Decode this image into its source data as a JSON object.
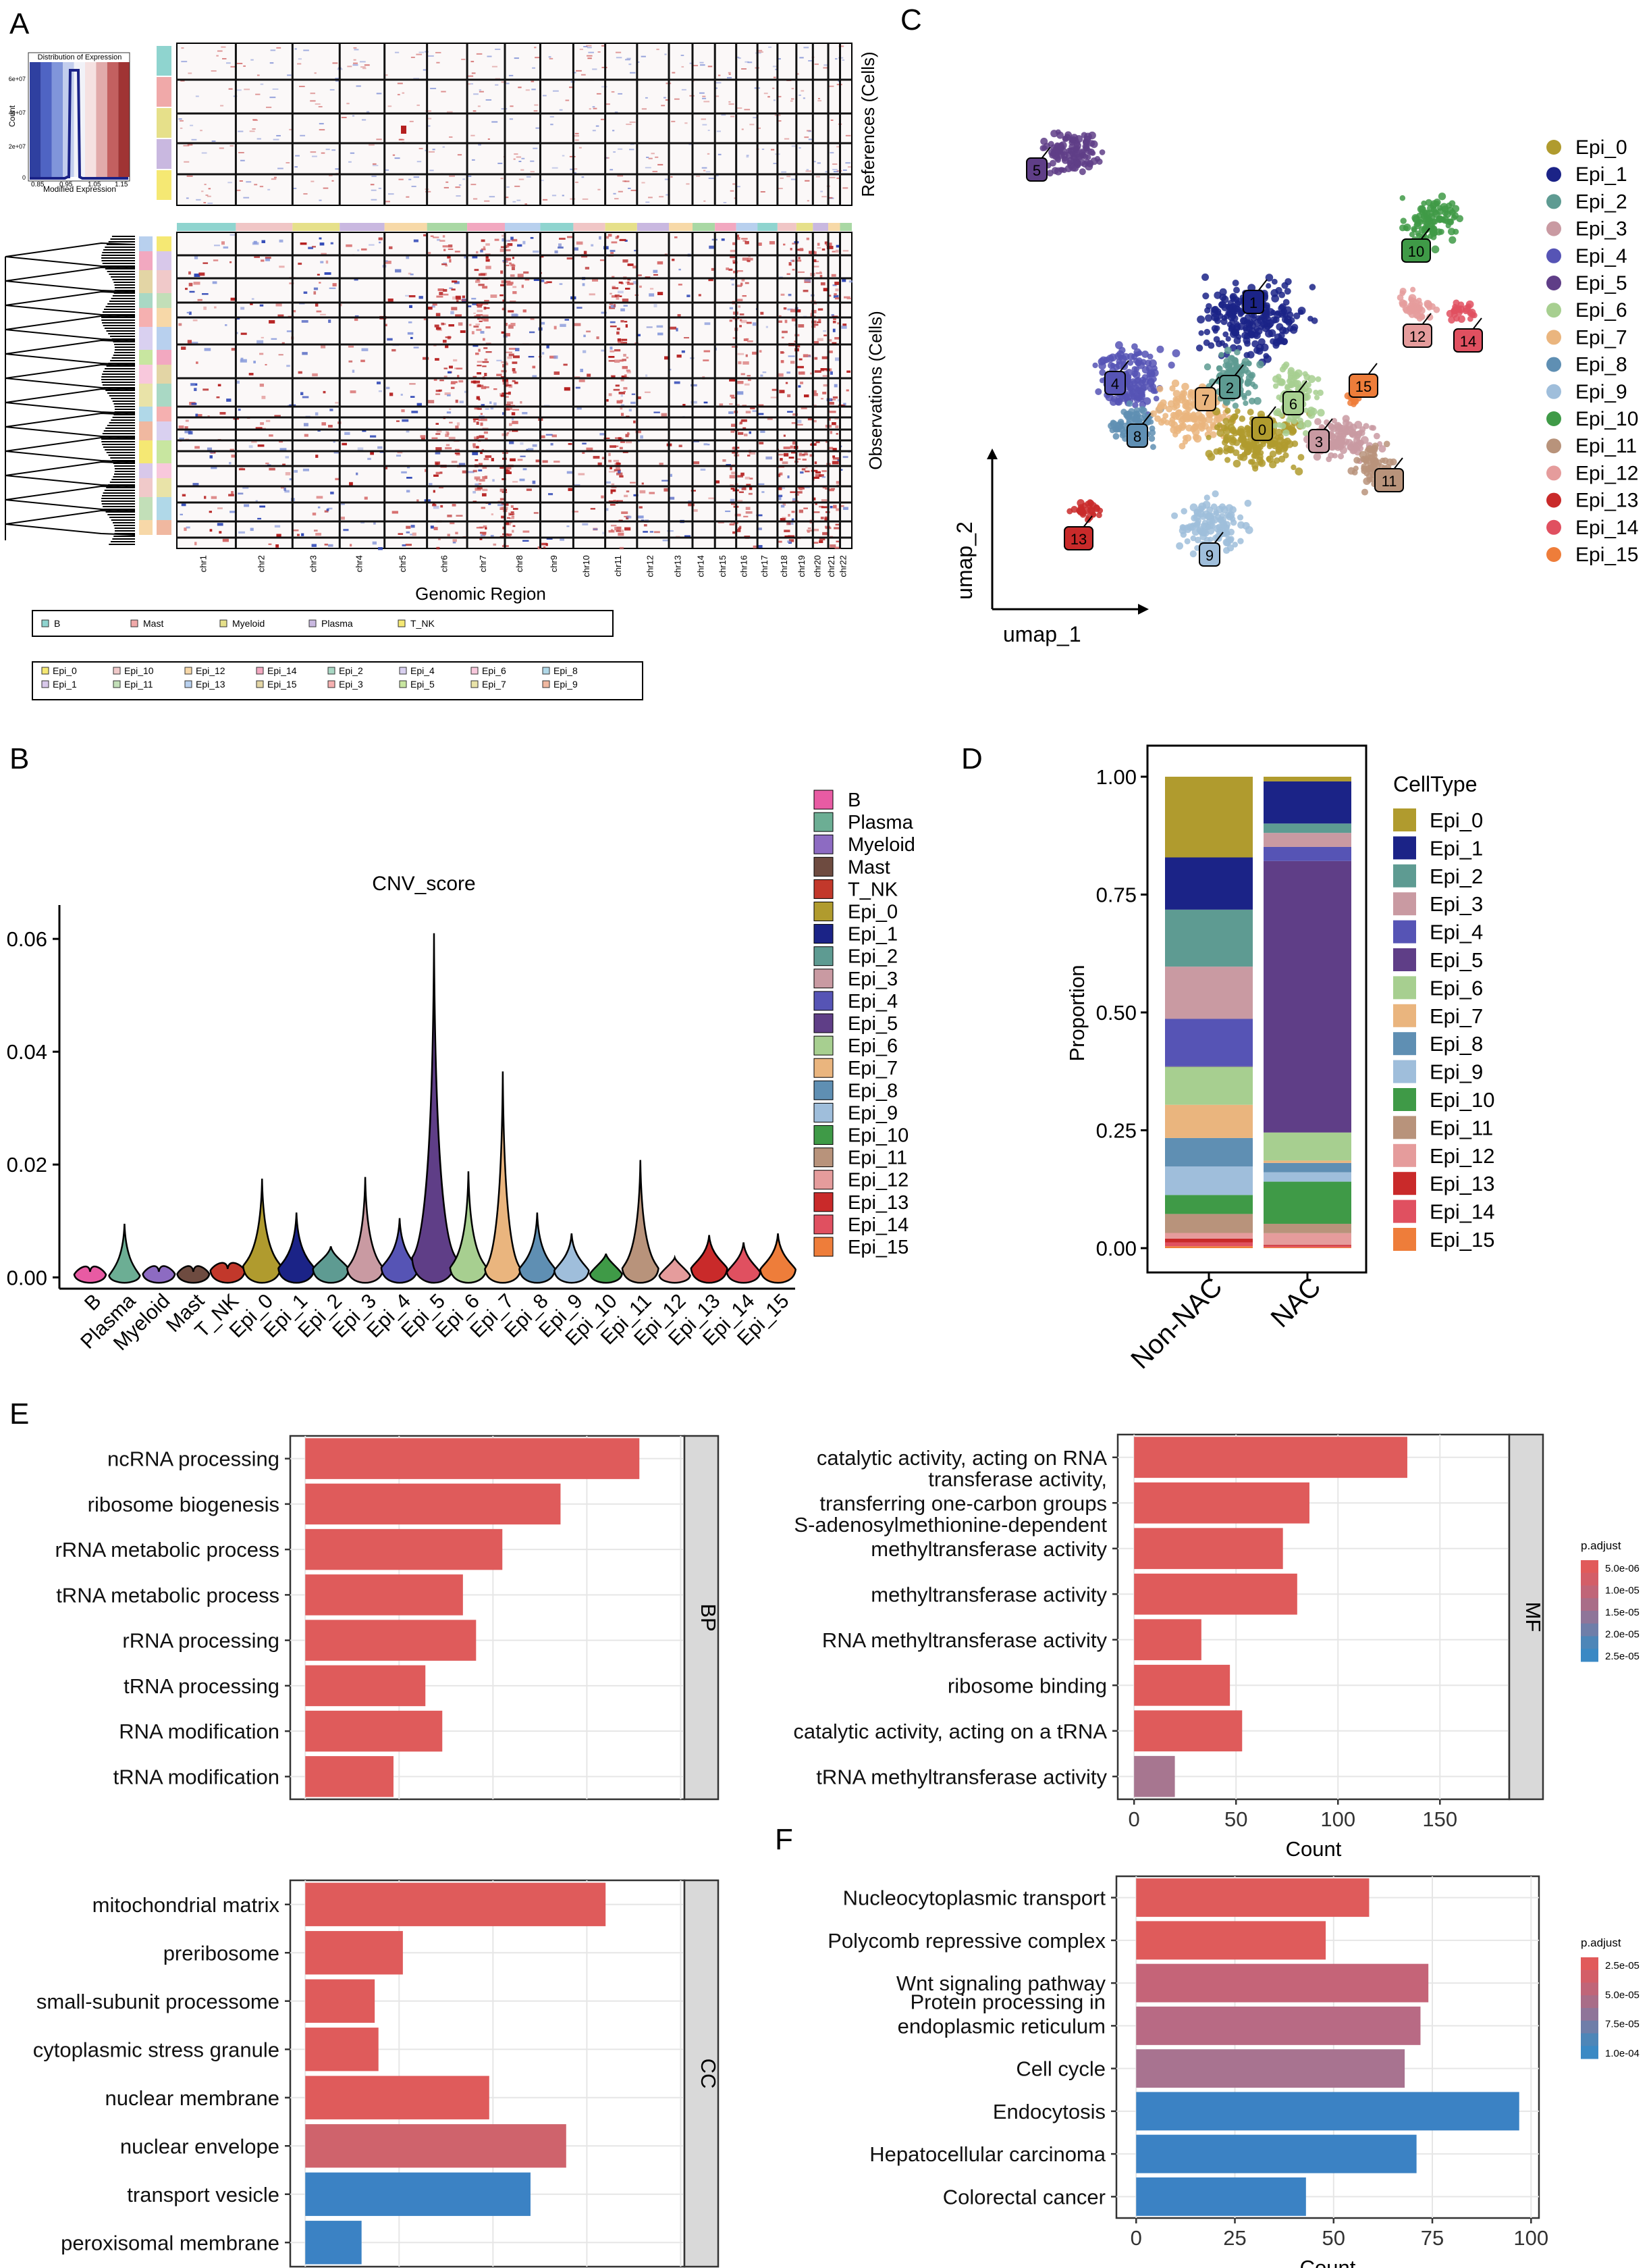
{
  "colors": {
    "B": "#e85ba3",
    "Plasma": "#6cae94",
    "Myeloid": "#8d6bc2",
    "Mast": "#6e4b40",
    "T_NK": "#c2382b",
    "Epi_0": "#b09b2e",
    "Epi_1": "#1b2387",
    "Epi_2": "#5e9b92",
    "Epi_3": "#c99aa2",
    "Epi_4": "#5654b5",
    "Epi_5": "#5f3e87",
    "Epi_6": "#a7cf90",
    "Epi_7": "#eab57e",
    "Epi_8": "#5f8fb3",
    "Epi_9": "#9fbedb",
    "Epi_10": "#3f9a47",
    "Epi_11": "#b8937b",
    "Epi_12": "#e59c9c",
    "Epi_13": "#c92a2a",
    "Epi_14": "#e05060",
    "Epi_15": "#ee7d3a"
  },
  "panels": {
    "A": {
      "label": "A",
      "hist_title": "Distribution of Expression",
      "hist_xlabel": "Modified Expression",
      "hist_ylabel": "Count",
      "hist_xticks": [
        "0.85",
        "0.95",
        "1.05",
        "1.15"
      ],
      "hist_yticks": [
        "0",
        "2e+07",
        "4e+07",
        "6e+07"
      ],
      "ref_label": "References (Cells)",
      "obs_label": "Observations (Cells)",
      "xlabel": "Genomic Region",
      "chromosomes": [
        "chr1",
        "chr2",
        "chr3",
        "chr4",
        "chr5",
        "chr6",
        "chr7",
        "chr8",
        "chr9",
        "chr10",
        "chr11",
        "chr12",
        "chr13",
        "chr14",
        "chr15",
        "chr16",
        "chr17",
        "chr18",
        "chr19",
        "chr20",
        "chr21",
        "chr22"
      ],
      "legend_refs": [
        "B",
        "Mast",
        "Myeloid",
        "Plasma",
        "T_NK"
      ],
      "legend_obs_row1": [
        "Epi_0",
        "Epi_10",
        "Epi_12",
        "Epi_14",
        "Epi_2",
        "Epi_4",
        "Epi_6",
        "Epi_8"
      ],
      "legend_obs_row2": [
        "Epi_1",
        "Epi_11",
        "Epi_13",
        "Epi_15",
        "Epi_3",
        "Epi_5",
        "Epi_7",
        "Epi_9"
      ]
    },
    "B": {
      "label": "B"
    },
    "C": {
      "label": "C",
      "xlabel": "umap_1",
      "ylabel": "umap_2"
    },
    "D": {
      "label": "D"
    },
    "E": {
      "label": "E"
    },
    "F": {
      "label": "F"
    }
  },
  "chart_data": [
    {
      "id": "B",
      "type": "violin",
      "title": "CNV_score",
      "categories": [
        "B",
        "Plasma",
        "Myeloid",
        "Mast",
        "T_NK",
        "Epi_0",
        "Epi_1",
        "Epi_2",
        "Epi_3",
        "Epi_4",
        "Epi_5",
        "Epi_6",
        "Epi_7",
        "Epi_8",
        "Epi_9",
        "Epi_10",
        "Epi_11",
        "Epi_12",
        "Epi_13",
        "Epi_14",
        "Epi_15"
      ],
      "max_values": [
        0.001,
        0.0095,
        0.001,
        0.001,
        0.0015,
        0.0175,
        0.0115,
        0.0055,
        0.0178,
        0.0105,
        0.061,
        0.0188,
        0.0365,
        0.0115,
        0.0078,
        0.0042,
        0.0208,
        0.0035,
        0.0075,
        0.0062,
        0.0078
      ],
      "medians": [
        0.0005,
        0.0003,
        0.0006,
        0.0006,
        0.0012,
        0.002,
        0.0016,
        0.0015,
        0.0016,
        0.0017,
        0.0035,
        0.0017,
        0.0015,
        0.0015,
        0.0012,
        0.0006,
        0.0016,
        0.0003,
        0.0016,
        0.0009,
        0.0014
      ],
      "ylim": [
        -0.002,
        0.066
      ],
      "yticks": [
        0.0,
        0.02,
        0.04,
        0.06
      ],
      "ytick_labels": [
        "0.00",
        "0.02",
        "0.04",
        "0.06"
      ],
      "legend": [
        "B",
        "Plasma",
        "Myeloid",
        "Mast",
        "T_NK",
        "Epi_0",
        "Epi_1",
        "Epi_2",
        "Epi_3",
        "Epi_4",
        "Epi_5",
        "Epi_6",
        "Epi_7",
        "Epi_8",
        "Epi_9",
        "Epi_10",
        "Epi_11",
        "Epi_12",
        "Epi_13",
        "Epi_14",
        "Epi_15"
      ]
    },
    {
      "id": "C",
      "type": "scatter",
      "title": "",
      "xlabel": "umap_1",
      "ylabel": "umap_2",
      "legend": [
        "Epi_0",
        "Epi_1",
        "Epi_2",
        "Epi_3",
        "Epi_4",
        "Epi_5",
        "Epi_6",
        "Epi_7",
        "Epi_8",
        "Epi_9",
        "Epi_10",
        "Epi_11",
        "Epi_12",
        "Epi_13",
        "Epi_14",
        "Epi_15"
      ],
      "cluster_labels": [
        "0",
        "1",
        "2",
        "3",
        "4",
        "5",
        "6",
        "7",
        "8",
        "9",
        "10",
        "11",
        "12",
        "13",
        "14",
        "15"
      ]
    },
    {
      "id": "D",
      "type": "bar",
      "stacked": true,
      "categories": [
        "Non-NAC",
        "NAC"
      ],
      "ylabel": "Proportion",
      "legend_title": "CellType",
      "ylim": [
        0,
        1
      ],
      "yticks": [
        "0.00",
        "0.25",
        "0.50",
        "0.75",
        "1.00"
      ],
      "series": [
        {
          "name": "Epi_0",
          "values": [
            0.17,
            0.01
          ]
        },
        {
          "name": "Epi_1",
          "values": [
            0.11,
            0.09
          ]
        },
        {
          "name": "Epi_2",
          "values": [
            0.12,
            0.02
          ]
        },
        {
          "name": "Epi_3",
          "values": [
            0.11,
            0.03
          ]
        },
        {
          "name": "Epi_4",
          "values": [
            0.1,
            0.03
          ]
        },
        {
          "name": "Epi_5",
          "values": [
            0.001,
            0.58
          ]
        },
        {
          "name": "Epi_6",
          "values": [
            0.08,
            0.06
          ]
        },
        {
          "name": "Epi_7",
          "values": [
            0.07,
            0.005
          ]
        },
        {
          "name": "Epi_8",
          "values": [
            0.06,
            0.02
          ]
        },
        {
          "name": "Epi_9",
          "values": [
            0.06,
            0.02
          ]
        },
        {
          "name": "Epi_10",
          "values": [
            0.04,
            0.09
          ]
        },
        {
          "name": "Epi_11",
          "values": [
            0.04,
            0.02
          ]
        },
        {
          "name": "Epi_12",
          "values": [
            0.012,
            0.025
          ]
        },
        {
          "name": "Epi_13",
          "values": [
            0.008,
            0.002
          ]
        },
        {
          "name": "Epi_14",
          "values": [
            0.008,
            0.003
          ]
        },
        {
          "name": "Epi_15",
          "values": [
            0.004,
            0.002
          ]
        }
      ]
    },
    {
      "id": "E_BP",
      "type": "bar",
      "orientation": "horizontal",
      "facet": "BP",
      "categories": [
        "ncRNA processing",
        "ribosome biogenesis",
        "rRNA metabolic process",
        "tRNA metabolic process",
        "rRNA processing",
        "tRNA processing",
        "RNA modification",
        "tRNA modification"
      ],
      "values": [
        178,
        136,
        105,
        84,
        91,
        64,
        73,
        47
      ],
      "xlim": [
        -8,
        202
      ],
      "padj_colors": [
        "#df5b5b",
        "#df5b5b",
        "#df5b5b",
        "#df5b5b",
        "#df5b5b",
        "#df5b5b",
        "#df5b5b",
        "#df5b5b"
      ]
    },
    {
      "id": "E_CC",
      "type": "bar",
      "orientation": "horizontal",
      "facet": "CC",
      "categories": [
        "mitochondrial matrix",
        "preribosome",
        "small-subunit processome",
        "cytoplasmic stress granule",
        "nuclear membrane",
        "nuclear envelope",
        "transport vesicle",
        "peroxisomal membrane"
      ],
      "values": [
        160,
        52,
        37,
        39,
        98,
        139,
        120,
        30
      ],
      "xlim": [
        -8,
        202
      ],
      "padj_colors": [
        "#df5b5b",
        "#df5b5b",
        "#df5b5b",
        "#df5b5b",
        "#df5b5b",
        "#cf636c",
        "#3b82c4",
        "#3b82c4"
      ]
    },
    {
      "id": "E_MF",
      "type": "bar",
      "orientation": "horizontal",
      "facet": "MF",
      "xlabel": "Count",
      "categories": [
        "catalytic activity, acting on RNA",
        "transferase activity,\ntransferring one-carbon groups",
        "S-adenosylmethionine-dependent\nmethyltransferase activity",
        "methyltransferase activity",
        "RNA methyltransferase activity",
        "ribosome binding",
        "catalytic activity, acting on a tRNA",
        "tRNA methyltransferase activity"
      ],
      "values": [
        134,
        86,
        73,
        80,
        33,
        47,
        53,
        20
      ],
      "xlim": [
        -8,
        184
      ],
      "xticks": [
        0,
        50,
        100,
        150
      ],
      "padj_colors": [
        "#df5b5b",
        "#df5b5b",
        "#df5b5b",
        "#df5b5b",
        "#df5b5b",
        "#df5b5b",
        "#df5b5b",
        "#a77690"
      ],
      "colorbar_title": "p.adjust",
      "colorbar_labels": [
        "5.0e-06",
        "1.0e-05",
        "1.5e-05",
        "2.0e-05",
        "2.5e-05"
      ]
    },
    {
      "id": "F",
      "type": "bar",
      "orientation": "horizontal",
      "xlabel": "Count",
      "categories": [
        "Nucleocytoplasmic transport",
        "Polycomb repressive complex",
        "Wnt signaling pathway",
        "Protein processing in\nendoplasmic reticulum",
        "Cell cycle",
        "Endocytosis",
        "Hepatocellular carcinoma",
        "Colorectal cancer"
      ],
      "values": [
        59,
        48,
        74,
        72,
        68,
        97,
        71,
        43
      ],
      "xlim": [
        -5,
        102
      ],
      "xticks": [
        0,
        25,
        50,
        75,
        100
      ],
      "padj_colors": [
        "#df5b5b",
        "#df5b5b",
        "#c56478",
        "#b86a84",
        "#a87390",
        "#3b82c4",
        "#3b82c4",
        "#3b82c4"
      ],
      "colorbar_title": "p.adjust",
      "colorbar_labels": [
        "2.5e-05",
        "5.0e-05",
        "7.5e-05",
        "1.0e-04"
      ]
    }
  ]
}
